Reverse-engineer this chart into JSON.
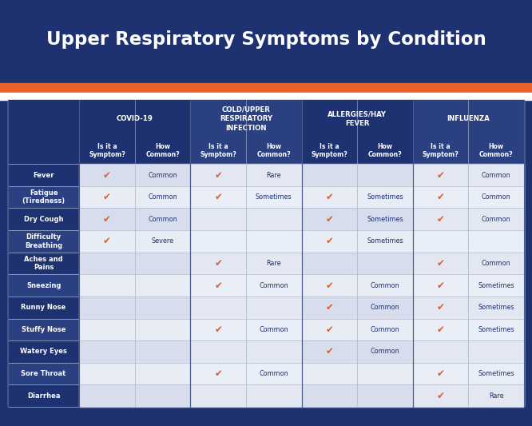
{
  "title": "Upper Respiratory Symptoms by Condition",
  "title_bg": "#1e3170",
  "title_color": "#ffffff",
  "stripe_orange": "#e8622a",
  "stripe_white": "#ffffff",
  "header_dark": "#1e3170",
  "header_mid": "#2b4080",
  "row_label_dark": "#1e3170",
  "row_label_mid": "#2b4080",
  "row_data_light": "#d8dded",
  "row_data_lighter": "#e8ecf5",
  "row_data_white": "#f0f2f8",
  "check_color": "#e05c2a",
  "text_color": "#1e3170",
  "sub_header_color": "#1e3170",
  "footer_bg": "#1e3170",
  "conditions": [
    "COVID-19",
    "COLD/UPPER\nRESPIRATORY\nINFECTION",
    "ALLERGIES/HAY\nFEVER",
    "INFLUENZA"
  ],
  "symptoms": [
    "Fever",
    "Fatigue\n(Tiredness)",
    "Dry Cough",
    "Difficulty\nBreathing",
    "Aches and\nPains",
    "Sneezing",
    "Runny Nose",
    "Stuffy Nose",
    "Watery Eyes",
    "Sore Throat",
    "Diarrhea"
  ],
  "data": {
    "Fever": [
      true,
      "Common",
      true,
      "Rare",
      false,
      "",
      true,
      "Common"
    ],
    "Fatigue\n(Tiredness)": [
      true,
      "Common",
      true,
      "Sometimes",
      true,
      "Sometimes",
      true,
      "Common"
    ],
    "Dry Cough": [
      true,
      "Common",
      false,
      "",
      true,
      "Sometimes",
      true,
      "Common"
    ],
    "Difficulty\nBreathing": [
      true,
      "Severe",
      false,
      "",
      true,
      "Sometimes",
      false,
      ""
    ],
    "Aches and\nPains": [
      false,
      "",
      true,
      "Rare",
      false,
      "",
      true,
      "Common"
    ],
    "Sneezing": [
      false,
      "",
      true,
      "Common",
      true,
      "Common",
      true,
      "Sometimes"
    ],
    "Runny Nose": [
      false,
      "",
      false,
      "",
      true,
      "Common",
      true,
      "Sometimes"
    ],
    "Stuffy Nose": [
      false,
      "",
      true,
      "Common",
      true,
      "Common",
      true,
      "Sometimes"
    ],
    "Watery Eyes": [
      false,
      "",
      false,
      "",
      true,
      "Common",
      false,
      ""
    ],
    "Sore Throat": [
      false,
      "",
      true,
      "Common",
      false,
      "",
      true,
      "Sometimes"
    ],
    "Diarrhea": [
      false,
      "",
      false,
      "",
      false,
      "",
      true,
      "Rare"
    ]
  }
}
